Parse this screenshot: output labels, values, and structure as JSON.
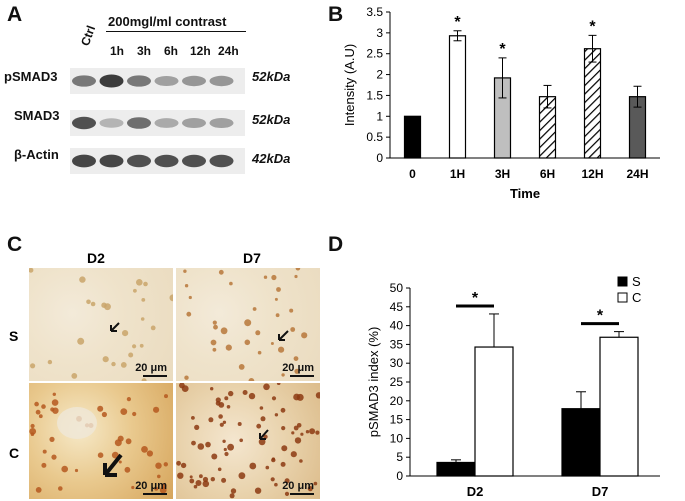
{
  "panels": {
    "a": "A",
    "b": "B",
    "c": "C",
    "d": "D"
  },
  "blot": {
    "treatment_header": "200mgl/ml contrast",
    "lanes": [
      "Ctrl",
      "1h",
      "3h",
      "6h",
      "12h",
      "24h"
    ],
    "rows": [
      {
        "label": "pSMAD3",
        "size": "52kDa",
        "intensities": [
          0.55,
          0.85,
          0.55,
          0.35,
          0.4,
          0.4
        ]
      },
      {
        "label": "SMAD3",
        "size": "52kDa",
        "intensities": [
          0.75,
          0.25,
          0.6,
          0.3,
          0.35,
          0.35
        ]
      },
      {
        "label": "β-Actin",
        "size": "42kDa",
        "intensities": [
          0.8,
          0.8,
          0.75,
          0.75,
          0.75,
          0.75
        ]
      }
    ]
  },
  "ihc": {
    "col_labels": [
      "D2",
      "D7"
    ],
    "row_labels": [
      "S",
      "C"
    ],
    "scale_bar": "20 μm"
  },
  "chart_data": [
    {
      "type": "bar",
      "categories": [
        "0",
        "1H",
        "3H",
        "6H",
        "12H",
        "24H"
      ],
      "values": [
        1.0,
        2.93,
        1.92,
        1.47,
        2.62,
        1.47
      ],
      "errors": [
        0,
        0.12,
        0.48,
        0.27,
        0.32,
        0.25
      ],
      "significant": [
        false,
        true,
        true,
        false,
        true,
        false
      ],
      "fills": [
        "#000000",
        "#ffffff",
        "#bfbfbf",
        "hatch",
        "hatch",
        "#595959"
      ],
      "xlabel": "Time",
      "ylabel": "Intensity (A.U)",
      "ylim": [
        0,
        3.5
      ],
      "yticks": [
        "0",
        "0.5",
        "1",
        "1.5",
        "2",
        "2.5",
        "3",
        "3.5"
      ],
      "significance_mark": "*"
    },
    {
      "type": "bar",
      "categories": [
        "D2",
        "D7"
      ],
      "series": [
        {
          "name": "S",
          "values": [
            3.6,
            17.9
          ],
          "errors": [
            0.7,
            4.5
          ],
          "color": "#000000"
        },
        {
          "name": "C",
          "values": [
            34.3,
            36.9
          ],
          "errors": [
            8.8,
            1.5
          ],
          "color": "#ffffff"
        }
      ],
      "ylabel": "pSMAD3 index (%)",
      "ylim": [
        0,
        50
      ],
      "yticks": [
        "0",
        "5",
        "10",
        "15",
        "20",
        "25",
        "30",
        "35",
        "40",
        "45",
        "50"
      ],
      "significance_mark": "*",
      "legend": "top-right"
    }
  ]
}
